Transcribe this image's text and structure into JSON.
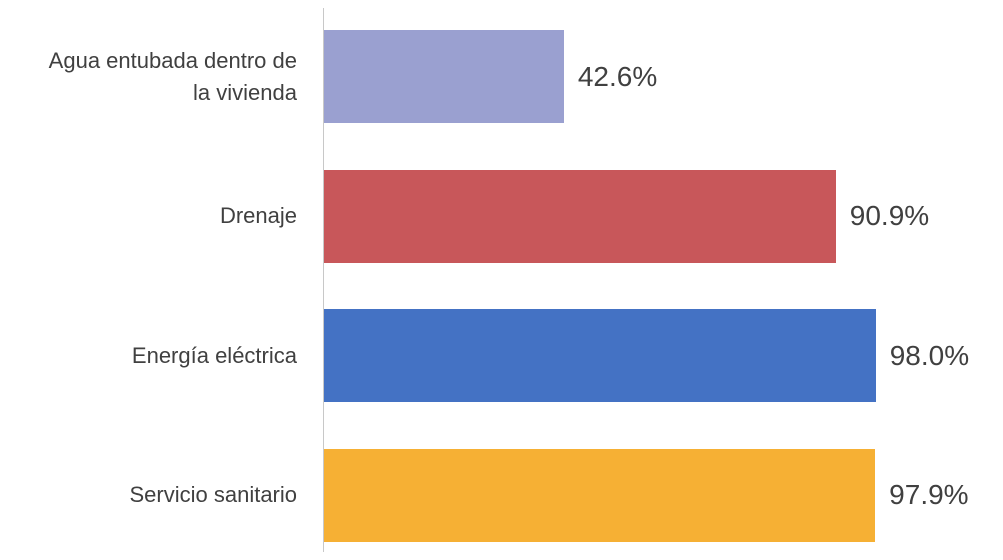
{
  "chart_data": {
    "type": "barh",
    "categories": [
      "Agua entubada dentro de la vivienda",
      "Drenaje",
      "Energía eléctrica",
      "Servicio sanitario"
    ],
    "values": [
      42.6,
      90.9,
      98.0,
      97.9
    ],
    "value_labels": [
      "42.6%",
      "90.9%",
      "98.0%",
      "97.9%"
    ],
    "colors": [
      "#9aa0d0",
      "#c8575a",
      "#4472c4",
      "#f6b034"
    ],
    "xlim": [
      0,
      100
    ]
  }
}
